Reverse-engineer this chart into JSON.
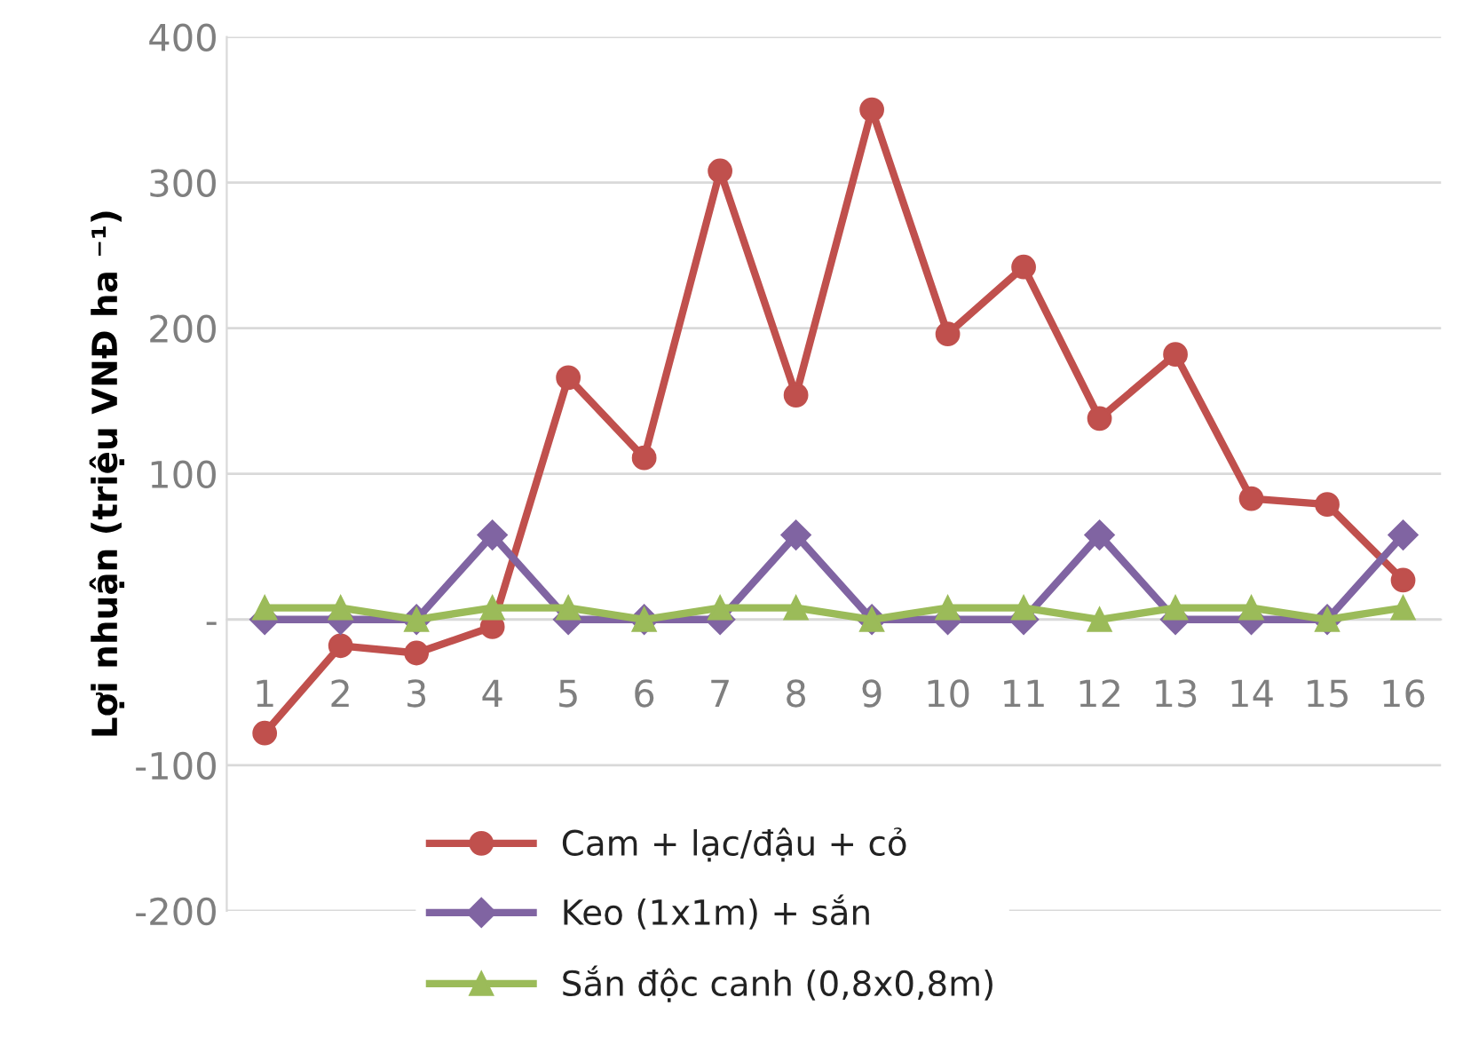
{
  "chart_data": {
    "type": "line",
    "ylabel": "Lợi nhuận (triệu VNĐ ha ⁻¹)",
    "categories": [
      "1",
      "2",
      "3",
      "4",
      "5",
      "6",
      "7",
      "8",
      "9",
      "10",
      "11",
      "12",
      "13",
      "14",
      "15",
      "16"
    ],
    "series": [
      {
        "name": "Cam + lạc/đậu + cỏ",
        "color": "#c0504d",
        "marker": "circle",
        "values": [
          -78,
          -18,
          -23,
          -5,
          166,
          111,
          308,
          154,
          350,
          196,
          242,
          138,
          182,
          83,
          79,
          27
        ]
      },
      {
        "name": "Keo (1x1m) + sắn",
        "color": "#8064a2",
        "marker": "diamond",
        "values": [
          0,
          0,
          0,
          58,
          0,
          0,
          0,
          58,
          0,
          0,
          0,
          58,
          0,
          0,
          0,
          58
        ]
      },
      {
        "name": "Sắn độc canh (0,8x0,8m)",
        "color": "#9bbb59",
        "marker": "triangle",
        "values": [
          8,
          8,
          0,
          8,
          8,
          0,
          8,
          8,
          0,
          8,
          8,
          0,
          8,
          8,
          0,
          8
        ]
      }
    ],
    "ylim": [
      -200,
      400
    ],
    "yticks": [
      400,
      300,
      200,
      100,
      {
        "value": 0,
        "label": "-"
      },
      -100,
      -200
    ],
    "grid": "y",
    "legend": "bottom"
  }
}
